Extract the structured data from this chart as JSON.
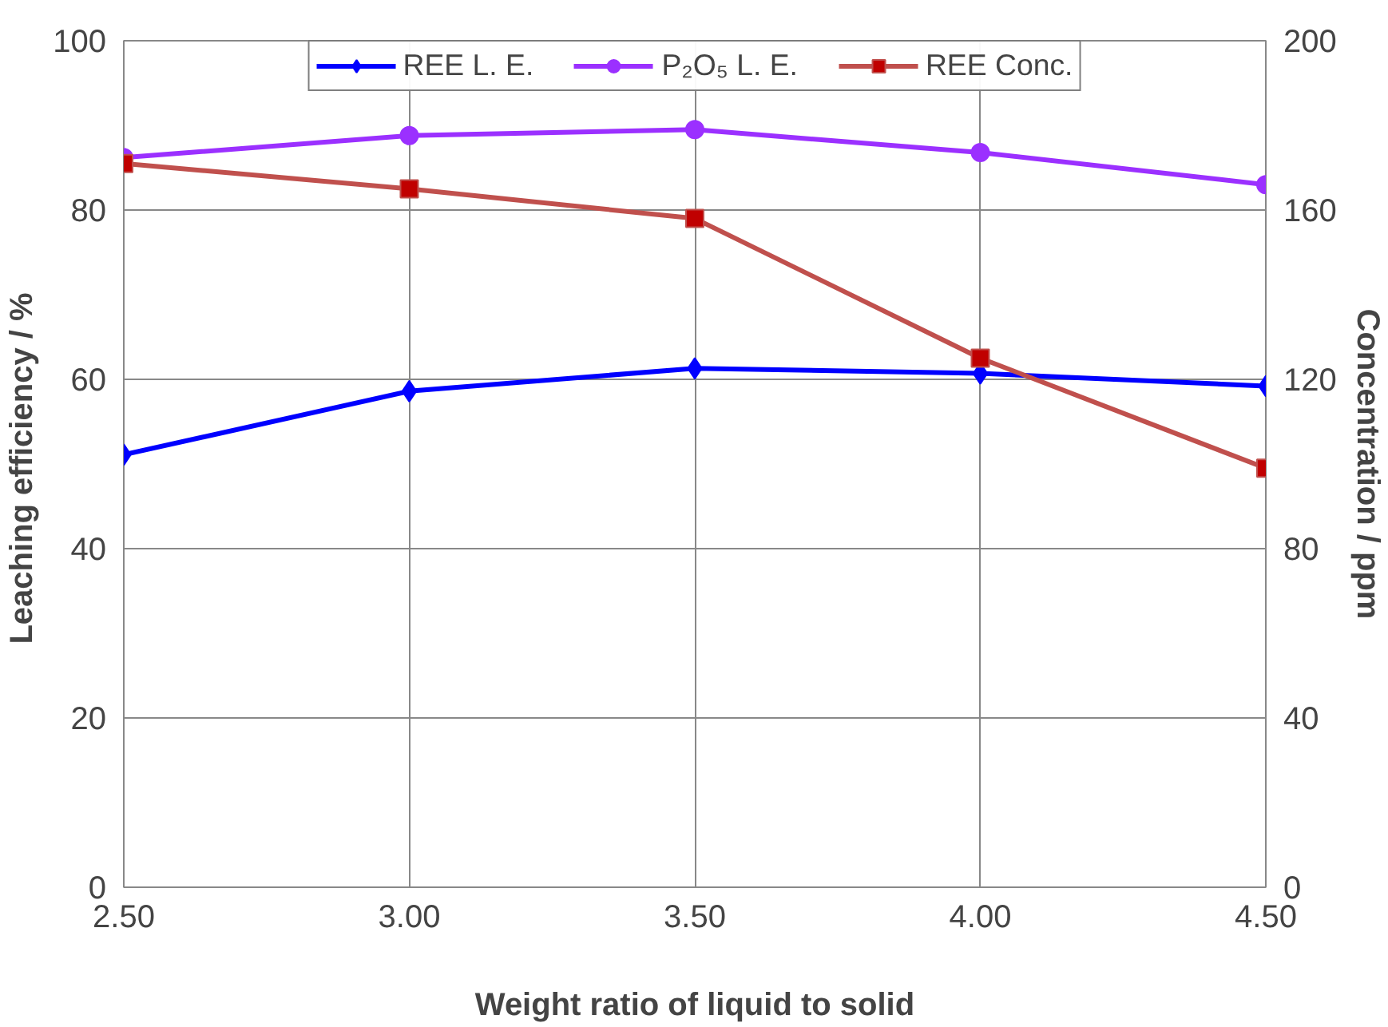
{
  "chart_data": {
    "type": "line",
    "xlabel": "Weight ratio of liquid to solid",
    "ylabel": "Leaching efficiency  / %",
    "y2label": "Concentration / ppm",
    "x": [
      2.5,
      3.0,
      3.5,
      4.0,
      4.5
    ],
    "xlim": [
      2.5,
      4.5
    ],
    "xticks": [
      {
        "value": 2.5,
        "label": "2.50"
      },
      {
        "value": 3.0,
        "label": "3.00"
      },
      {
        "value": 3.5,
        "label": "3.50"
      },
      {
        "value": 4.0,
        "label": "4.00"
      },
      {
        "value": 4.5,
        "label": "4.50"
      }
    ],
    "ylim": [
      0,
      100
    ],
    "yticks": [
      0,
      20,
      40,
      60,
      80,
      100
    ],
    "y2lim": [
      0,
      200
    ],
    "y2ticks": [
      0,
      40,
      80,
      120,
      160,
      200
    ],
    "grid": true,
    "legend": "top",
    "line_style": "solid",
    "series": [
      {
        "name": "REE L. E.",
        "color": "#0000ff",
        "marker": "diamond",
        "values": [
          51.1,
          58.6,
          61.3,
          60.7,
          59.2
        ]
      },
      {
        "name": "P₂O₅ L. E.",
        "color": "#9b30ff",
        "marker": "circle",
        "values": [
          86.2,
          88.8,
          89.5,
          86.8,
          83.0
        ]
      },
      {
        "name": "REE Conc.",
        "color": "#c0504d",
        "marker": "square",
        "axis": "y2",
        "values": [
          171,
          165,
          158,
          125,
          99
        ]
      }
    ]
  }
}
